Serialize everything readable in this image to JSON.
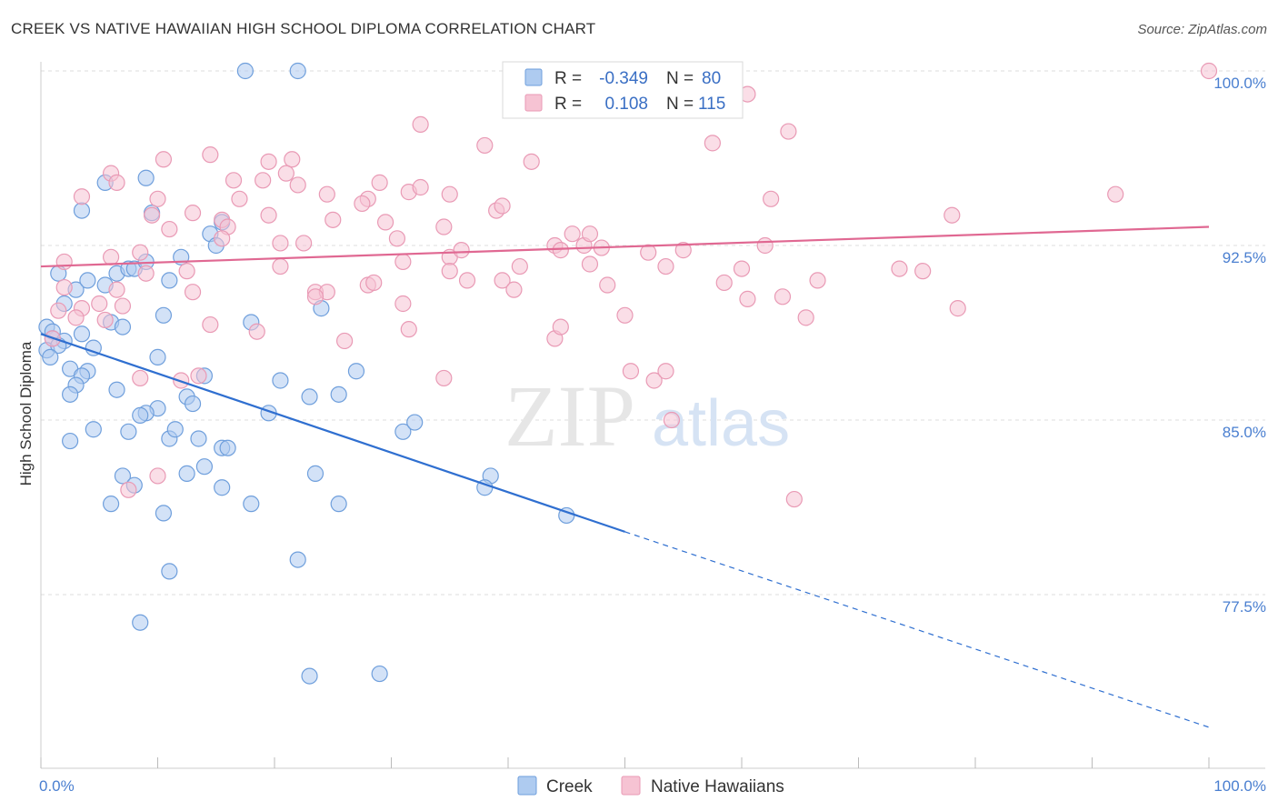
{
  "title": "CREEK VS NATIVE HAWAIIAN HIGH SCHOOL DIPLOMA CORRELATION CHART",
  "source": "Source: ZipAtlas.com",
  "watermark": {
    "zip": "ZIP",
    "atlas": "atlas"
  },
  "colors": {
    "creek_fill": "#aecbf0",
    "creek_stroke": "#6f9fdc",
    "creek_line": "#2f6fd0",
    "nh_fill": "#f6c3d3",
    "nh_stroke": "#e99ab5",
    "nh_line": "#e06892",
    "grid": "#dddddd",
    "tick_text": "#4a7fd0"
  },
  "legend": {
    "rows": [
      {
        "r_label": "R =",
        "r_value": "-0.349",
        "n_label": "N =",
        "n_value": "80"
      },
      {
        "r_label": "R =",
        "r_value": "0.108",
        "n_label": "N =",
        "n_value": "115"
      }
    ]
  },
  "bottom_legend": [
    "Creek",
    "Native Hawaiians"
  ],
  "chart_data": {
    "type": "scatter",
    "xlabel": "",
    "ylabel": "High School Diploma",
    "xlim": [
      0,
      100
    ],
    "ylim": [
      71.5,
      101.2
    ],
    "x_tick_labels": [
      "0.0%",
      "100.0%"
    ],
    "y_ticks": [
      77.5,
      85.0,
      92.5,
      100.0
    ],
    "y_tick_labels": [
      "77.5%",
      "85.0%",
      "92.5%",
      "100.0%"
    ],
    "grid": "horizontal dashed",
    "legend_placement": "top-center",
    "series": [
      {
        "name": "Creek",
        "trend": {
          "x": [
            0,
            50,
            100
          ],
          "y": [
            88.7,
            80.2,
            71.8
          ],
          "solid_until": 50
        },
        "points": [
          [
            17.5,
            100
          ],
          [
            22,
            100
          ],
          [
            5.5,
            95.2
          ],
          [
            9,
            95.4
          ],
          [
            3.5,
            94
          ],
          [
            9.5,
            93.9
          ],
          [
            14.5,
            93
          ],
          [
            15.5,
            93.5
          ],
          [
            1.5,
            91.3
          ],
          [
            6.5,
            91.3
          ],
          [
            7.5,
            91.5
          ],
          [
            8,
            91.5
          ],
          [
            5.5,
            90.8
          ],
          [
            3,
            90.6
          ],
          [
            2,
            90
          ],
          [
            24,
            89.8
          ],
          [
            10.5,
            89.5
          ],
          [
            0.5,
            89
          ],
          [
            1,
            88.8
          ],
          [
            6,
            89.2
          ],
          [
            7,
            89
          ],
          [
            18,
            89.2
          ],
          [
            1,
            88.5
          ],
          [
            2,
            88.4
          ],
          [
            3.5,
            88.7
          ],
          [
            4.5,
            88.1
          ],
          [
            0.5,
            88
          ],
          [
            1.5,
            88.2
          ],
          [
            0.8,
            87.7
          ],
          [
            10,
            87.7
          ],
          [
            2.5,
            87.2
          ],
          [
            4,
            87.1
          ],
          [
            3.5,
            86.9
          ],
          [
            14,
            86.9
          ],
          [
            20.5,
            86.7
          ],
          [
            27,
            87.1
          ],
          [
            3,
            86.5
          ],
          [
            6.5,
            86.3
          ],
          [
            2.5,
            86.1
          ],
          [
            12.5,
            86
          ],
          [
            10,
            85.5
          ],
          [
            9,
            85.3
          ],
          [
            8.5,
            85.2
          ],
          [
            13,
            85.7
          ],
          [
            19.5,
            85.3
          ],
          [
            23,
            86
          ],
          [
            25.5,
            86.1
          ],
          [
            4.5,
            84.6
          ],
          [
            7.5,
            84.5
          ],
          [
            11,
            84.2
          ],
          [
            11.5,
            84.6
          ],
          [
            2.5,
            84.1
          ],
          [
            13.5,
            84.2
          ],
          [
            15.5,
            83.8
          ],
          [
            16,
            83.8
          ],
          [
            31,
            84.5
          ],
          [
            32,
            84.9
          ],
          [
            12.5,
            82.7
          ],
          [
            14,
            83
          ],
          [
            7,
            82.6
          ],
          [
            8,
            82.2
          ],
          [
            15.5,
            82.1
          ],
          [
            23.5,
            82.7
          ],
          [
            38.5,
            82.6
          ],
          [
            38,
            82.1
          ],
          [
            6,
            81.4
          ],
          [
            10.5,
            81
          ],
          [
            18,
            81.4
          ],
          [
            25.5,
            81.4
          ],
          [
            45,
            80.9
          ],
          [
            11,
            78.5
          ],
          [
            22,
            79
          ],
          [
            8.5,
            76.3
          ],
          [
            23,
            74
          ],
          [
            29,
            74.1
          ],
          [
            12,
            92
          ],
          [
            15,
            92.5
          ],
          [
            4,
            91
          ],
          [
            11,
            91
          ],
          [
            9,
            91.8
          ]
        ]
      },
      {
        "name": "Native Hawaiians",
        "trend": {
          "x": [
            0,
            100
          ],
          "y": [
            91.6,
            93.3
          ]
        },
        "points": [
          [
            59,
            100
          ],
          [
            100,
            100
          ],
          [
            60.5,
            99
          ],
          [
            32.5,
            97.7
          ],
          [
            64,
            97.4
          ],
          [
            57.5,
            96.9
          ],
          [
            38,
            96.8
          ],
          [
            14.5,
            96.4
          ],
          [
            10.5,
            96.2
          ],
          [
            42,
            96.1
          ],
          [
            19.5,
            96.1
          ],
          [
            21.5,
            96.2
          ],
          [
            6,
            95.6
          ],
          [
            16.5,
            95.3
          ],
          [
            19,
            95.3
          ],
          [
            21,
            95.6
          ],
          [
            22,
            95.1
          ],
          [
            6.5,
            95.2
          ],
          [
            29,
            95.2
          ],
          [
            31.5,
            94.8
          ],
          [
            32.5,
            95
          ],
          [
            24.5,
            94.7
          ],
          [
            28,
            94.5
          ],
          [
            35,
            94.7
          ],
          [
            3.5,
            94.6
          ],
          [
            10,
            94.5
          ],
          [
            17,
            94.5
          ],
          [
            27.5,
            94.3
          ],
          [
            39,
            94
          ],
          [
            39.5,
            94.2
          ],
          [
            62.5,
            94.5
          ],
          [
            92,
            94.7
          ],
          [
            78,
            93.8
          ],
          [
            13,
            93.9
          ],
          [
            15.5,
            93.6
          ],
          [
            19.5,
            93.8
          ],
          [
            25,
            93.6
          ],
          [
            9.5,
            93.8
          ],
          [
            11,
            93.2
          ],
          [
            16,
            93.3
          ],
          [
            29.5,
            93.5
          ],
          [
            34.5,
            93.3
          ],
          [
            15.5,
            92.8
          ],
          [
            20.5,
            92.6
          ],
          [
            22.5,
            92.6
          ],
          [
            30.5,
            92.8
          ],
          [
            35,
            92
          ],
          [
            36,
            92.3
          ],
          [
            44,
            92.5
          ],
          [
            44.5,
            92.3
          ],
          [
            45.5,
            93
          ],
          [
            46.5,
            92.5
          ],
          [
            47,
            93
          ],
          [
            48,
            92.4
          ],
          [
            52,
            92.2
          ],
          [
            55,
            92.3
          ],
          [
            62,
            92.5
          ],
          [
            6,
            92
          ],
          [
            8.5,
            92.2
          ],
          [
            2,
            91.8
          ],
          [
            12.5,
            91.4
          ],
          [
            9,
            91.3
          ],
          [
            20.5,
            91.6
          ],
          [
            23.5,
            90.5
          ],
          [
            24.5,
            90.5
          ],
          [
            28,
            90.8
          ],
          [
            28.5,
            90.9
          ],
          [
            31,
            91.8
          ],
          [
            35,
            91.4
          ],
          [
            36.5,
            91
          ],
          [
            39.5,
            91
          ],
          [
            41,
            91.6
          ],
          [
            47,
            91.7
          ],
          [
            53.5,
            91.6
          ],
          [
            73.5,
            91.5
          ],
          [
            75.5,
            91.4
          ],
          [
            66.5,
            91
          ],
          [
            60,
            91.5
          ],
          [
            40.5,
            90.6
          ],
          [
            48.5,
            90.8
          ],
          [
            2,
            90.7
          ],
          [
            1.5,
            89.7
          ],
          [
            3.5,
            89.8
          ],
          [
            5,
            90
          ],
          [
            6.5,
            90.6
          ],
          [
            7,
            89.9
          ],
          [
            13,
            90.5
          ],
          [
            23.5,
            90.3
          ],
          [
            31,
            90
          ],
          [
            60.5,
            90.2
          ],
          [
            63.5,
            90.3
          ],
          [
            78.5,
            89.8
          ],
          [
            3,
            89.4
          ],
          [
            5.5,
            89.3
          ],
          [
            14.5,
            89.1
          ],
          [
            18.5,
            88.8
          ],
          [
            26,
            88.4
          ],
          [
            31.5,
            88.9
          ],
          [
            44,
            88.5
          ],
          [
            44.5,
            89
          ],
          [
            50,
            89.5
          ],
          [
            65.5,
            89.4
          ],
          [
            1,
            88.5
          ],
          [
            8.5,
            86.8
          ],
          [
            12,
            86.7
          ],
          [
            13.5,
            86.9
          ],
          [
            34.5,
            86.8
          ],
          [
            50.5,
            87.1
          ],
          [
            52.5,
            86.7
          ],
          [
            53.5,
            87.1
          ],
          [
            54,
            85
          ],
          [
            64.5,
            81.6
          ],
          [
            10,
            82.6
          ],
          [
            7.5,
            82
          ],
          [
            58.5,
            90.9
          ]
        ]
      }
    ]
  }
}
